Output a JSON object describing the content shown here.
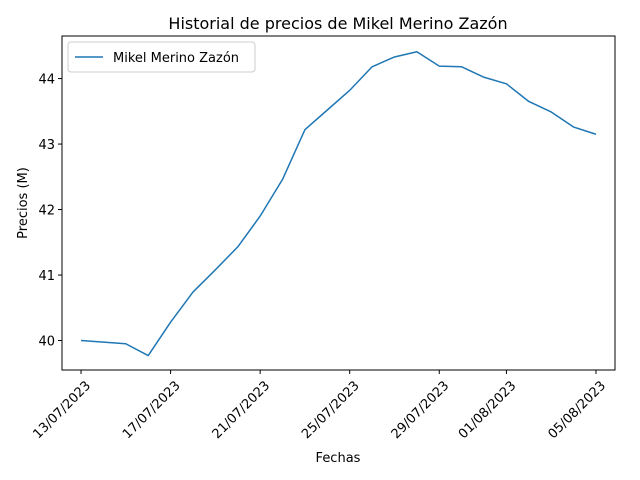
{
  "chart_data": {
    "type": "line",
    "title": "Historial de precios de Mikel Merino Zazón",
    "xlabel": "Fechas",
    "ylabel": "Precios (M)",
    "x_ticks": [
      "13/07/2023",
      "17/07/2023",
      "21/07/2023",
      "25/07/2023",
      "29/07/2023",
      "01/08/2023",
      "05/08/2023"
    ],
    "y_ticks": [
      "40",
      "41",
      "42",
      "43",
      "44"
    ],
    "ylim": [
      39.55,
      44.65
    ],
    "xlim": [
      "12/07/2023",
      "06/08/2023"
    ],
    "grid": false,
    "legend": "top-left",
    "series": [
      {
        "name": "Mikel Merino Zazón",
        "color": "#1f77b4",
        "points": [
          {
            "x": "13/07/2023",
            "y": 40.0
          },
          {
            "x": "15/07/2023",
            "y": 39.95
          },
          {
            "x": "16/07/2023",
            "y": 39.77
          },
          {
            "x": "17/07/2023",
            "y": 40.28
          },
          {
            "x": "18/07/2023",
            "y": 40.74
          },
          {
            "x": "19/07/2023",
            "y": 41.08
          },
          {
            "x": "20/07/2023",
            "y": 41.43
          },
          {
            "x": "21/07/2023",
            "y": 41.9
          },
          {
            "x": "22/07/2023",
            "y": 42.46
          },
          {
            "x": "23/07/2023",
            "y": 43.22
          },
          {
            "x": "24/07/2023",
            "y": 43.52
          },
          {
            "x": "25/07/2023",
            "y": 43.82
          },
          {
            "x": "26/07/2023",
            "y": 44.18
          },
          {
            "x": "27/07/2023",
            "y": 44.33
          },
          {
            "x": "28/07/2023",
            "y": 44.41
          },
          {
            "x": "29/07/2023",
            "y": 44.19
          },
          {
            "x": "30/07/2023",
            "y": 44.18
          },
          {
            "x": "31/07/2023",
            "y": 44.02
          },
          {
            "x": "01/08/2023",
            "y": 43.92
          },
          {
            "x": "02/08/2023",
            "y": 43.65
          },
          {
            "x": "03/08/2023",
            "y": 43.49
          },
          {
            "x": "04/08/2023",
            "y": 43.26
          },
          {
            "x": "05/08/2023",
            "y": 43.15
          }
        ]
      }
    ]
  }
}
